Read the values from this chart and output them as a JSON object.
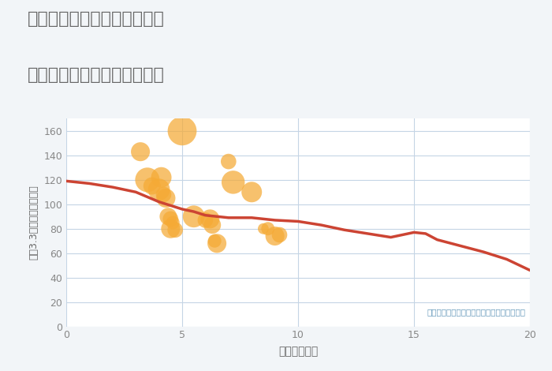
{
  "title_line1": "奈良県奈良市西大寺国見町の",
  "title_line2": "駅距離別中古マンション価格",
  "xlabel": "駅距離（分）",
  "ylabel": "坪（3.3㎡）単価（万円）",
  "annotation": "円の大きさは、取引のあった物件面積を示す",
  "background_color": "#f2f5f8",
  "plot_bg_color": "#ffffff",
  "grid_color": "#c5d5e5",
  "title_color": "#666666",
  "xlabel_color": "#666666",
  "ylabel_color": "#666666",
  "tick_color": "#888888",
  "annotation_color": "#6699bb",
  "bubble_color": "#f5aa35",
  "bubble_alpha": 0.72,
  "line_color": "#cc4433",
  "line_width": 2.5,
  "xlim": [
    0,
    20
  ],
  "ylim": [
    0,
    170
  ],
  "xticks": [
    0,
    5,
    10,
    15,
    20
  ],
  "yticks": [
    0,
    20,
    40,
    60,
    80,
    100,
    120,
    140,
    160
  ],
  "scatter_x": [
    3.2,
    3.5,
    3.7,
    4.0,
    4.1,
    4.2,
    4.3,
    4.4,
    4.5,
    4.5,
    4.6,
    4.7,
    5.0,
    5.5,
    6.0,
    6.2,
    6.3,
    6.4,
    6.5,
    7.0,
    7.2,
    8.0,
    8.5,
    8.7,
    9.0,
    9.2
  ],
  "scatter_y": [
    143,
    120,
    115,
    112,
    122,
    108,
    105,
    90,
    88,
    80,
    85,
    79,
    160,
    90,
    87,
    88,
    83,
    70,
    68,
    135,
    118,
    110,
    80,
    80,
    74,
    75
  ],
  "scatter_size": [
    300,
    500,
    250,
    400,
    350,
    200,
    300,
    250,
    200,
    300,
    150,
    200,
    700,
    400,
    200,
    300,
    250,
    150,
    300,
    200,
    450,
    350,
    100,
    150,
    300,
    200
  ],
  "line_x": [
    0,
    1,
    2,
    3,
    4,
    5,
    5.5,
    6,
    7,
    8,
    9,
    10,
    11,
    12,
    13,
    14,
    15,
    15.5,
    16,
    17,
    18,
    19,
    20
  ],
  "line_y": [
    119,
    117,
    114,
    110,
    102,
    96,
    94,
    91,
    89,
    89,
    87,
    86,
    83,
    79,
    76,
    73,
    77,
    76,
    71,
    66,
    61,
    55,
    46
  ]
}
